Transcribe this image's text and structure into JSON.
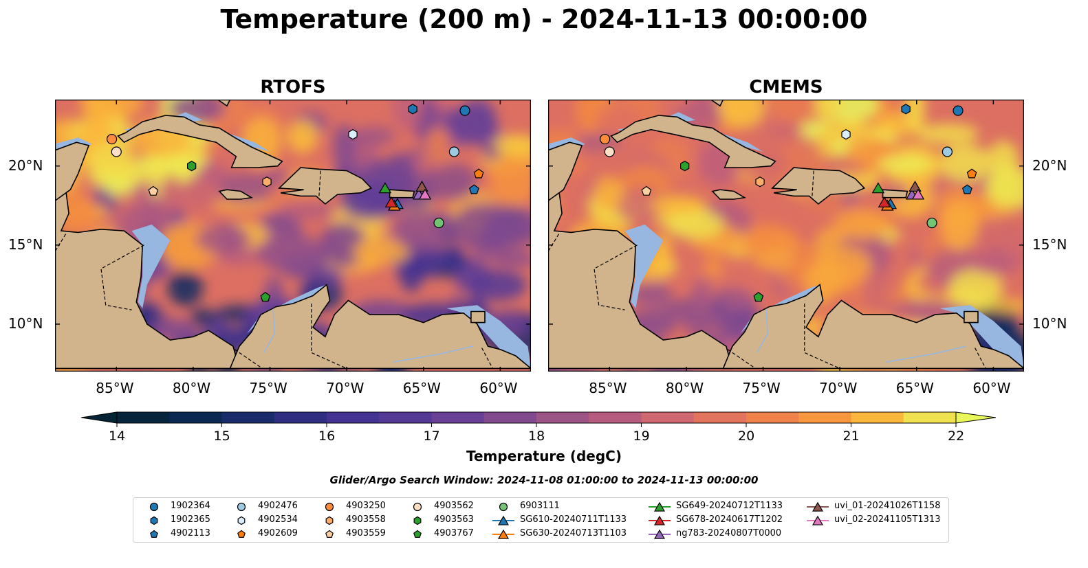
{
  "title": "Temperature (200 m) - 2024-11-13 00:00:00",
  "panels": [
    {
      "title": "RTOFS"
    },
    {
      "title": "CMEMS"
    }
  ],
  "map": {
    "lon_range": [
      -89,
      -58
    ],
    "lat_range": [
      7,
      24.2
    ],
    "lon_ticks": [
      {
        "lon": -85,
        "label": "85°W"
      },
      {
        "lon": -80,
        "label": "80°W"
      },
      {
        "lon": -75,
        "label": "75°W"
      },
      {
        "lon": -70,
        "label": "70°W"
      },
      {
        "lon": -65,
        "label": "65°W"
      },
      {
        "lon": -60,
        "label": "60°W"
      }
    ],
    "lat_ticks": [
      {
        "lat": 20,
        "label": "20°N"
      },
      {
        "lat": 15,
        "label": "15°N"
      },
      {
        "lat": 10,
        "label": "10°N"
      }
    ],
    "colors": {
      "land": "#d2b48c",
      "shelf": "#97b6e0",
      "coast": "#000000"
    }
  },
  "colorbar": {
    "title": "Temperature (degC)",
    "min": 14,
    "max": 22,
    "step": 0.5,
    "ticks": [
      "14",
      "15",
      "16",
      "17",
      "18",
      "19",
      "20",
      "21",
      "22"
    ],
    "colormap": "thermal",
    "extend": "both"
  },
  "search_window": "Glider/Argo Search Window: 2024-11-08 01:00:00 to 2024-11-13 00:00:00",
  "observations": [
    {
      "name": "1902364",
      "marker": "circle",
      "color": "#1f77b4",
      "lon": -62.3,
      "lat": 23.5
    },
    {
      "name": "1902365",
      "marker": "hexagon",
      "color": "#1f77b4",
      "lon": -65.7,
      "lat": 23.6
    },
    {
      "name": "4902113",
      "marker": "pentagon",
      "color": "#1f77b4",
      "lon": -61.7,
      "lat": 18.5
    },
    {
      "name": "4902476",
      "marker": "circle",
      "color": "#9ecae1",
      "lon": -63.0,
      "lat": 20.9
    },
    {
      "name": "4902534",
      "marker": "hexagon",
      "color": "#dbeefb",
      "lon": -69.6,
      "lat": 22.0
    },
    {
      "name": "4902609",
      "marker": "pentagon",
      "color": "#ff7f0e",
      "lon": -61.4,
      "lat": 19.5
    },
    {
      "name": "4903250",
      "marker": "circle",
      "color": "#fd8d3c",
      "lon": -85.3,
      "lat": 21.7
    },
    {
      "name": "4903558",
      "marker": "hexagon",
      "color": "#fdae6b",
      "lon": -75.2,
      "lat": 19.0
    },
    {
      "name": "4903559",
      "marker": "pentagon",
      "color": "#fdd0a2",
      "lon": -82.6,
      "lat": 18.4
    },
    {
      "name": "4903562",
      "marker": "circle",
      "color": "#fde0c5",
      "lon": -85.0,
      "lat": 20.9
    },
    {
      "name": "4903563",
      "marker": "hexagon",
      "color": "#2ca02c",
      "lon": -80.1,
      "lat": 20.0
    },
    {
      "name": "4903767",
      "marker": "pentagon",
      "color": "#2ca02c",
      "lon": -75.3,
      "lat": 11.7
    },
    {
      "name": "6903111",
      "marker": "circle",
      "color": "#74c476",
      "lon": -64.0,
      "lat": 16.4
    },
    {
      "name": "SG610-20240711T1133",
      "marker": "triangle",
      "color": "#1f77b4",
      "lon": -66.7,
      "lat": 17.6
    },
    {
      "name": "SG630-20240713T1103",
      "marker": "triangle",
      "color": "#ff7f0e",
      "lon": -66.9,
      "lat": 17.5
    },
    {
      "name": "SG649-20240712T1133",
      "marker": "triangle",
      "color": "#2ca02c",
      "lon": -67.5,
      "lat": 18.6
    },
    {
      "name": "SG678-20240617T1202",
      "marker": "triangle",
      "color": "#d62728",
      "lon": -67.1,
      "lat": 17.7
    },
    {
      "name": "ng783-20240807T0000",
      "marker": "triangle",
      "color": "#9467bd",
      "lon": -65.3,
      "lat": 18.2
    },
    {
      "name": "uvi_01-20241026T1158",
      "marker": "triangle",
      "color": "#8c564b",
      "lon": -65.1,
      "lat": 18.7
    },
    {
      "name": "uvi_02-20241105T1313",
      "marker": "triangle",
      "color": "#e377c2",
      "lon": -64.9,
      "lat": 18.2
    }
  ]
}
